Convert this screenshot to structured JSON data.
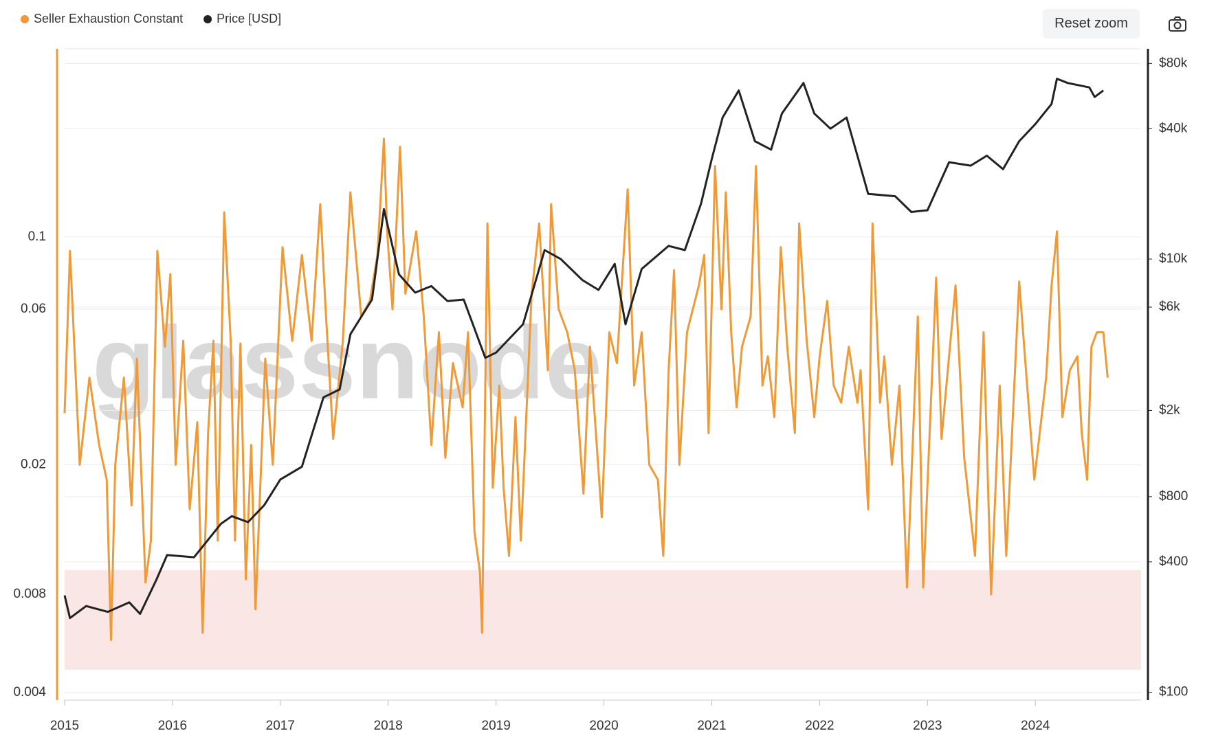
{
  "chart_data": {
    "type": "line",
    "log": true,
    "grid": true,
    "legend_position": "top-left",
    "watermark": "glassnode",
    "buttons": [
      "Reset zoom"
    ],
    "xlim": [
      2015,
      2024.98
    ],
    "xticks": [
      2015,
      2016,
      2017,
      2018,
      2019,
      2020,
      2021,
      2022,
      2023,
      2024
    ],
    "ylim": [
      0.00379,
      0.378
    ],
    "yticks": [
      0.004,
      0.008,
      0.02,
      0.06,
      0.1
    ],
    "y2lim": [
      92,
      93500
    ],
    "y2ticks": [
      {
        "value": 100,
        "label": "$100"
      },
      {
        "value": 400,
        "label": "$400"
      },
      {
        "value": 800,
        "label": "$800"
      },
      {
        "value": 2000,
        "label": "$2k"
      },
      {
        "value": 6000,
        "label": "$6k"
      },
      {
        "value": 10000,
        "label": "$10k"
      },
      {
        "value": 40000,
        "label": "$40k"
      },
      {
        "value": 80000,
        "label": "$80k"
      }
    ],
    "highlight_band": {
      "range": [
        0.0047,
        0.0095
      ],
      "color": "#fbe6e6"
    },
    "series": [
      {
        "name": "Seller Exhaustion Constant",
        "color": "#f09a37",
        "axis": "y",
        "x": [
          2015,
          2015.05,
          2015.14,
          2015.23,
          2015.32,
          2015.39,
          2015.43,
          2015.47,
          2015.55,
          2015.62,
          2015.67,
          2015.75,
          2015.8,
          2015.86,
          2015.93,
          2015.98,
          2016.03,
          2016.1,
          2016.16,
          2016.23,
          2016.28,
          2016.33,
          2016.38,
          2016.42,
          2016.48,
          2016.54,
          2016.58,
          2016.63,
          2016.68,
          2016.73,
          2016.77,
          2016.86,
          2016.93,
          2017.02,
          2017.11,
          2017.2,
          2017.29,
          2017.37,
          2017.42,
          2017.49,
          2017.58,
          2017.65,
          2017.75,
          2017.83,
          2017.9,
          2017.96,
          2017.99,
          2018.04,
          2018.11,
          2018.16,
          2018.26,
          2018.33,
          2018.4,
          2018.47,
          2018.53,
          2018.6,
          2018.69,
          2018.74,
          2018.8,
          2018.85,
          2018.87,
          2018.92,
          2018.97,
          2019.03,
          2019.07,
          2019.12,
          2019.18,
          2019.23,
          2019.33,
          2019.4,
          2019.48,
          2019.51,
          2019.58,
          2019.66,
          2019.73,
          2019.81,
          2019.87,
          2019.98,
          2020.05,
          2020.12,
          2020.22,
          2020.28,
          2020.35,
          2020.42,
          2020.5,
          2020.55,
          2020.6,
          2020.65,
          2020.7,
          2020.77,
          2020.88,
          2020.93,
          2020.97,
          2021.03,
          2021.09,
          2021.13,
          2021.18,
          2021.23,
          2021.28,
          2021.36,
          2021.41,
          2021.47,
          2021.52,
          2021.58,
          2021.64,
          2021.7,
          2021.77,
          2021.81,
          2021.88,
          2021.95,
          2022,
          2022.07,
          2022.13,
          2022.2,
          2022.27,
          2022.35,
          2022.38,
          2022.45,
          2022.49,
          2022.56,
          2022.6,
          2022.67,
          2022.74,
          2022.81,
          2022.91,
          2022.96,
          2023.08,
          2023.13,
          2023.26,
          2023.34,
          2023.44,
          2023.52,
          2023.59,
          2023.67,
          2023.73,
          2023.85,
          2023.99,
          2024.1,
          2024.15,
          2024.2,
          2024.25,
          2024.32,
          2024.39,
          2024.43,
          2024.48,
          2024.52,
          2024.57,
          2024.63,
          2024.67
        ],
        "values": [
          0.0288,
          0.0906,
          0.02,
          0.037,
          0.023,
          0.018,
          0.0058,
          0.02,
          0.037,
          0.015,
          0.0423,
          0.0087,
          0.0117,
          0.0906,
          0.046,
          0.0769,
          0.02,
          0.048,
          0.0146,
          0.027,
          0.0061,
          0.025,
          0.048,
          0.0117,
          0.119,
          0.048,
          0.0117,
          0.0471,
          0.0089,
          0.023,
          0.0072,
          0.0423,
          0.02,
          0.093,
          0.048,
          0.088,
          0.048,
          0.126,
          0.06,
          0.024,
          0.048,
          0.137,
          0.057,
          0.0636,
          0.088,
          0.2,
          0.104,
          0.06,
          0.189,
          0.067,
          0.104,
          0.057,
          0.023,
          0.051,
          0.021,
          0.041,
          0.03,
          0.051,
          0.0124,
          0.0094,
          0.0061,
          0.11,
          0.017,
          0.035,
          0.017,
          0.0105,
          0.028,
          0.0117,
          0.067,
          0.11,
          0.039,
          0.126,
          0.06,
          0.051,
          0.039,
          0.0163,
          0.046,
          0.0138,
          0.051,
          0.041,
          0.14,
          0.035,
          0.051,
          0.02,
          0.018,
          0.0105,
          0.039,
          0.079,
          0.02,
          0.051,
          0.071,
          0.088,
          0.025,
          0.165,
          0.06,
          0.137,
          0.051,
          0.03,
          0.046,
          0.057,
          0.165,
          0.035,
          0.043,
          0.028,
          0.093,
          0.046,
          0.025,
          0.11,
          0.048,
          0.028,
          0.043,
          0.0636,
          0.035,
          0.031,
          0.046,
          0.031,
          0.039,
          0.0146,
          0.11,
          0.031,
          0.043,
          0.02,
          0.035,
          0.0084,
          0.057,
          0.0084,
          0.075,
          0.024,
          0.071,
          0.021,
          0.0105,
          0.051,
          0.008,
          0.035,
          0.0105,
          0.073,
          0.018,
          0.037,
          0.071,
          0.104,
          0.028,
          0.039,
          0.043,
          0.025,
          0.018,
          0.046,
          0.051,
          0.051,
          0.037
        ]
      },
      {
        "name": "Price [USD]",
        "color": "#222222",
        "axis": "y2",
        "x": [
          2015,
          2015.05,
          2015.2,
          2015.4,
          2015.6,
          2015.7,
          2015.85,
          2015.95,
          2016.2,
          2016.45,
          2016.55,
          2016.7,
          2016.85,
          2017,
          2017.2,
          2017.4,
          2017.55,
          2017.65,
          2017.85,
          2017.96,
          2018.1,
          2018.25,
          2018.4,
          2018.55,
          2018.7,
          2018.9,
          2019,
          2019.25,
          2019.45,
          2019.6,
          2019.8,
          2019.95,
          2020.1,
          2020.2,
          2020.35,
          2020.6,
          2020.75,
          2020.9,
          2021,
          2021.1,
          2021.25,
          2021.4,
          2021.55,
          2021.65,
          2021.85,
          2021.95,
          2022.1,
          2022.25,
          2022.35,
          2022.45,
          2022.7,
          2022.85,
          2023,
          2023.2,
          2023.4,
          2023.55,
          2023.7,
          2023.85,
          2024,
          2024.15,
          2024.2,
          2024.3,
          2024.5,
          2024.55,
          2024.63
        ],
        "values": [
          280,
          220,
          250,
          235,
          260,
          230,
          330,
          430,
          420,
          600,
          650,
          610,
          730,
          960,
          1100,
          2300,
          2500,
          4500,
          6500,
          17000,
          8500,
          7000,
          7500,
          6400,
          6500,
          3500,
          3700,
          5000,
          11000,
          10000,
          8000,
          7200,
          9500,
          5000,
          9000,
          11500,
          11000,
          18000,
          29000,
          45000,
          60000,
          35000,
          32000,
          47000,
          65000,
          47000,
          40000,
          45000,
          30000,
          20000,
          19500,
          16500,
          16800,
          28000,
          27000,
          30000,
          26000,
          35000,
          42000,
          52000,
          68000,
          65000,
          62000,
          56000,
          60000
        ]
      }
    ]
  }
}
